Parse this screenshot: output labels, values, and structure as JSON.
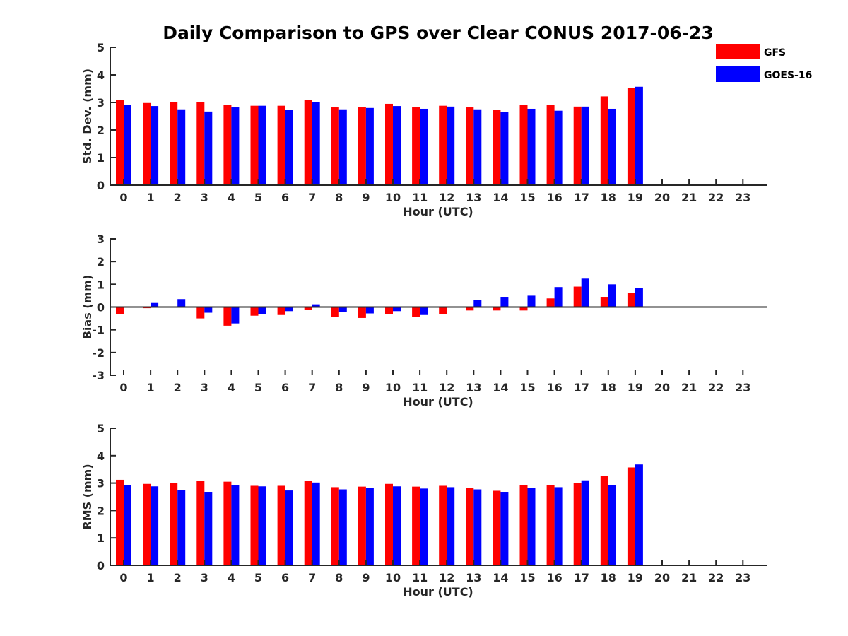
{
  "title": "Daily Comparison to GPS over Clear CONUS 2017-06-23",
  "legend": [
    {
      "name": "GFS",
      "color": "#ff0000"
    },
    {
      "name": "GOES-16",
      "color": "#0000ff"
    }
  ],
  "chart_data": [
    {
      "type": "bar",
      "title": "Daily Comparison to GPS over Clear CONUS 2017-06-23",
      "xlabel": "Hour (UTC)",
      "ylabel": "Std. Dev. (mm)",
      "ylim": [
        0,
        5
      ],
      "yticks": [
        "0",
        "1",
        "2",
        "3",
        "4",
        "5"
      ],
      "categories": [
        "0",
        "1",
        "2",
        "3",
        "4",
        "5",
        "6",
        "7",
        "8",
        "9",
        "10",
        "11",
        "12",
        "13",
        "14",
        "15",
        "16",
        "17",
        "18",
        "19",
        "20",
        "21",
        "22",
        "23"
      ],
      "series": [
        {
          "name": "GFS",
          "color": "#ff0000",
          "values": [
            3.1,
            2.98,
            3.0,
            3.02,
            2.92,
            2.88,
            2.88,
            3.08,
            2.82,
            2.82,
            2.95,
            2.82,
            2.88,
            2.82,
            2.72,
            2.92,
            2.9,
            2.85,
            3.22,
            3.52,
            null,
            null,
            null,
            null
          ]
        },
        {
          "name": "GOES-16",
          "color": "#0000ff",
          "values": [
            2.92,
            2.87,
            2.75,
            2.67,
            2.82,
            2.88,
            2.72,
            3.02,
            2.75,
            2.8,
            2.87,
            2.77,
            2.85,
            2.75,
            2.65,
            2.77,
            2.7,
            2.85,
            2.77,
            3.57,
            null,
            null,
            null,
            null
          ]
        }
      ]
    },
    {
      "type": "bar",
      "xlabel": "Hour (UTC)",
      "ylabel": "Bias (mm)",
      "ylim": [
        -3,
        3
      ],
      "yticks": [
        "-3",
        "-2",
        "-1",
        "0",
        "1",
        "2",
        "3"
      ],
      "categories": [
        "0",
        "1",
        "2",
        "3",
        "4",
        "5",
        "6",
        "7",
        "8",
        "9",
        "10",
        "11",
        "12",
        "13",
        "14",
        "15",
        "16",
        "17",
        "18",
        "19",
        "20",
        "21",
        "22",
        "23"
      ],
      "series": [
        {
          "name": "GFS",
          "color": "#ff0000",
          "values": [
            -0.3,
            -0.05,
            0.02,
            -0.5,
            -0.82,
            -0.38,
            -0.35,
            -0.12,
            -0.42,
            -0.48,
            -0.3,
            -0.45,
            -0.3,
            -0.15,
            -0.15,
            -0.15,
            0.38,
            0.9,
            0.45,
            0.62,
            null,
            null,
            null,
            null
          ]
        },
        {
          "name": "GOES-16",
          "color": "#0000ff",
          "values": [
            0.0,
            0.18,
            0.35,
            -0.25,
            -0.72,
            -0.32,
            -0.18,
            0.12,
            -0.22,
            -0.28,
            -0.18,
            -0.35,
            0.0,
            0.32,
            0.45,
            0.5,
            0.88,
            1.25,
            1.0,
            0.85,
            null,
            null,
            null,
            null
          ]
        }
      ]
    },
    {
      "type": "bar",
      "xlabel": "Hour (UTC)",
      "ylabel": "RMS (mm)",
      "ylim": [
        0,
        5
      ],
      "yticks": [
        "0",
        "1",
        "2",
        "3",
        "4",
        "5"
      ],
      "categories": [
        "0",
        "1",
        "2",
        "3",
        "4",
        "5",
        "6",
        "7",
        "8",
        "9",
        "10",
        "11",
        "12",
        "13",
        "14",
        "15",
        "16",
        "17",
        "18",
        "19",
        "20",
        "21",
        "22",
        "23"
      ],
      "series": [
        {
          "name": "GFS",
          "color": "#ff0000",
          "values": [
            3.12,
            2.97,
            3.0,
            3.07,
            3.05,
            2.9,
            2.9,
            3.07,
            2.85,
            2.87,
            2.97,
            2.87,
            2.9,
            2.83,
            2.72,
            2.93,
            2.93,
            3.0,
            3.27,
            3.57,
            null,
            null,
            null,
            null
          ]
        },
        {
          "name": "GOES-16",
          "color": "#0000ff",
          "values": [
            2.93,
            2.88,
            2.75,
            2.68,
            2.92,
            2.88,
            2.73,
            3.02,
            2.77,
            2.82,
            2.88,
            2.8,
            2.85,
            2.77,
            2.68,
            2.83,
            2.85,
            3.1,
            2.93,
            3.68,
            null,
            null,
            null,
            null
          ]
        }
      ]
    }
  ]
}
